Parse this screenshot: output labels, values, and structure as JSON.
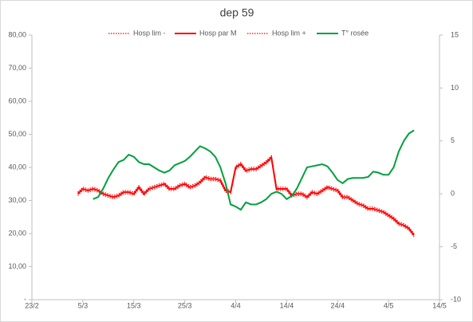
{
  "chart_data": {
    "type": "line",
    "title": "dep  59",
    "categories": [
      "23/2",
      null,
      null,
      null,
      null,
      null,
      null,
      null,
      null,
      null,
      "5/3",
      null,
      null,
      null,
      null,
      null,
      null,
      null,
      null,
      null,
      "15/3",
      null,
      null,
      null,
      null,
      null,
      null,
      null,
      null,
      null,
      "25/3",
      null,
      null,
      null,
      null,
      null,
      null,
      null,
      null,
      null,
      "4/4",
      null,
      null,
      null,
      null,
      null,
      null,
      null,
      null,
      null,
      "14/4",
      null,
      null,
      null,
      null,
      null,
      null,
      null,
      null,
      null,
      "24/4",
      null,
      null,
      null,
      null,
      null,
      null,
      null,
      null,
      null,
      "4/5",
      null,
      null,
      null,
      null,
      null,
      null,
      null,
      null,
      null,
      "14/5"
    ],
    "series": [
      {
        "name": "Hosp lim -",
        "color": "#ff0000",
        "style": "dotted",
        "values": [
          null,
          null,
          null,
          null,
          null,
          null,
          null,
          null,
          null,
          31.5,
          33,
          32.5,
          33,
          32.5,
          31.5,
          31,
          30.5,
          31,
          32,
          32,
          31.5,
          33.5,
          31.5,
          33,
          33.5,
          34,
          34.5,
          33,
          33,
          34,
          34.5,
          33.5,
          34,
          35,
          36.5,
          36,
          36,
          35.5,
          32.5,
          32,
          39.5,
          40.5,
          38.5,
          39,
          39,
          40,
          41,
          42.5,
          33,
          33,
          33,
          31,
          31.5,
          31.5,
          30.5,
          32,
          31.5,
          32.5,
          33.5,
          33,
          32.5,
          30.5,
          30.5,
          29.5,
          28.5,
          28,
          27,
          27,
          26.5,
          26,
          25,
          24,
          22.5,
          22,
          21,
          19,
          null,
          null,
          null,
          null,
          null
        ]
      },
      {
        "name": "Hosp par M",
        "color": "#ff0000",
        "style": "solid",
        "values": [
          null,
          null,
          null,
          null,
          null,
          null,
          null,
          null,
          null,
          32,
          33.5,
          33,
          33.5,
          33,
          32,
          31.5,
          31,
          31.5,
          32.5,
          32.5,
          32,
          34,
          32,
          33.5,
          34,
          34.5,
          35,
          33.5,
          33.5,
          34.5,
          35,
          34,
          34.5,
          35.5,
          37,
          36.5,
          36.5,
          36,
          33,
          32.5,
          40,
          41,
          39,
          39.5,
          39.5,
          40.5,
          41.5,
          43,
          33.5,
          33.5,
          33.5,
          31.5,
          32,
          32,
          31,
          32.5,
          32,
          33,
          34,
          33.5,
          33,
          31,
          31,
          30,
          29,
          28.5,
          27.5,
          27.5,
          27,
          26.5,
          25.5,
          24.5,
          23,
          22.5,
          21.5,
          19.5,
          null,
          null,
          null,
          null,
          null
        ]
      },
      {
        "name": "Hosp lim +",
        "color": "#ff0000",
        "style": "dotted",
        "values": [
          null,
          null,
          null,
          null,
          null,
          null,
          null,
          null,
          null,
          32.5,
          34,
          33.5,
          34,
          33.5,
          32.5,
          32,
          31.5,
          32,
          33,
          33,
          32.5,
          34.5,
          32.5,
          34,
          34.5,
          35,
          35.5,
          34,
          34,
          35,
          35.5,
          34.5,
          35,
          36,
          37.5,
          37,
          37,
          36.5,
          33.5,
          33,
          40.5,
          41.5,
          39.5,
          40,
          40,
          41,
          42,
          43.5,
          34,
          34,
          34,
          32,
          32.5,
          32.5,
          31.5,
          33,
          32.5,
          33.5,
          34.5,
          34,
          33.5,
          31.5,
          31.5,
          30.5,
          29.5,
          29,
          28,
          28,
          27.5,
          27,
          26,
          25,
          23.5,
          23,
          22,
          20,
          null,
          null,
          null,
          null,
          null
        ]
      },
      {
        "name": "T° rosée",
        "color": "#00a03c",
        "style": "solid",
        "axis": "y2",
        "values": [
          null,
          null,
          null,
          null,
          null,
          null,
          null,
          null,
          null,
          null,
          null,
          null,
          -0.5,
          -0.3,
          0.5,
          1.5,
          2.3,
          3,
          3.2,
          3.7,
          3.5,
          3,
          2.8,
          2.8,
          2.5,
          2.2,
          2,
          2.2,
          2.7,
          2.9,
          3.1,
          3.5,
          4,
          4.5,
          4.3,
          4,
          3.5,
          2.5,
          1,
          -1,
          -1.2,
          -1.5,
          -0.8,
          -1,
          -1,
          -0.8,
          -0.5,
          0,
          0.2,
          0,
          -0.5,
          -0.2,
          0.5,
          1.5,
          2.5,
          2.6,
          2.7,
          2.8,
          2.6,
          2,
          1.3,
          1,
          1.4,
          1.5,
          1.5,
          1.5,
          1.6,
          2.1,
          2,
          1.8,
          1.8,
          2.5,
          4,
          5,
          5.7,
          6,
          null,
          null,
          null,
          null,
          null
        ]
      }
    ],
    "ylim": [
      0,
      80
    ],
    "yticks": [
      {
        "value": 0,
        "label": "-"
      },
      {
        "value": 10,
        "label": "10,00"
      },
      {
        "value": 20,
        "label": "20,00"
      },
      {
        "value": 30,
        "label": "30,00"
      },
      {
        "value": 40,
        "label": "40,00"
      },
      {
        "value": 50,
        "label": "50,00"
      },
      {
        "value": 60,
        "label": "60,00"
      },
      {
        "value": 70,
        "label": "70,00"
      },
      {
        "value": 80,
        "label": "80,00"
      }
    ],
    "y2lim": [
      -10,
      15
    ],
    "y2ticks": [
      -10,
      -5,
      0,
      5,
      10,
      15
    ],
    "grid": false,
    "legend": "top"
  }
}
